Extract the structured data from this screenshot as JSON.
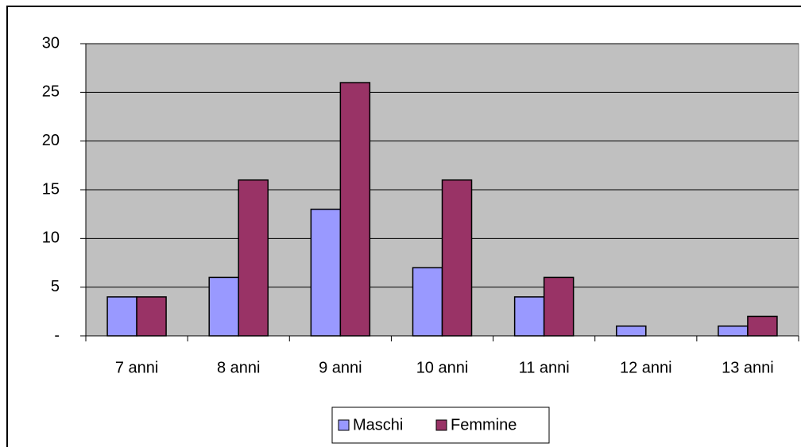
{
  "chart_data": {
    "type": "bar",
    "categories": [
      "7 anni",
      "8 anni",
      "9 anni",
      "10 anni",
      "11 anni",
      "12 anni",
      "13 anni"
    ],
    "series": [
      {
        "name": "Maschi",
        "color": "#9999ff",
        "values": [
          4,
          6,
          13,
          7,
          4,
          1,
          1
        ]
      },
      {
        "name": "Femmine",
        "color": "#993366",
        "values": [
          4,
          16,
          26,
          16,
          6,
          0,
          2
        ]
      }
    ],
    "ylim": [
      0,
      30
    ],
    "yticks": [
      {
        "value": 0,
        "label": "-"
      },
      5,
      10,
      15,
      20,
      25,
      30
    ],
    "grid": true,
    "legend": "bottom"
  }
}
